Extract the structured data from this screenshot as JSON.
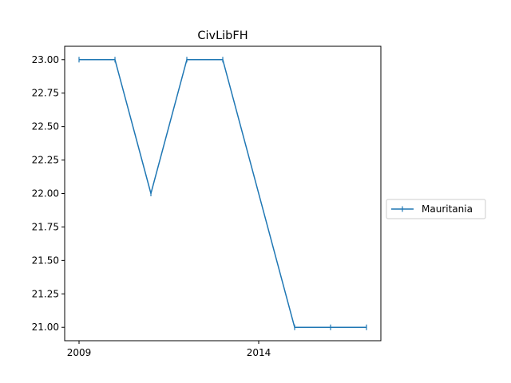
{
  "chart_data": {
    "type": "line",
    "title": "CivLibFH",
    "xlabel": "",
    "ylabel": "",
    "x": [
      2009,
      2010,
      2011,
      2012,
      2013,
      2014,
      2015,
      2016,
      2017
    ],
    "series": [
      {
        "name": "Mauritania",
        "marker": "|",
        "color": "#1f77b4",
        "points": [
          {
            "x": 2009,
            "y": 23
          },
          {
            "x": 2010,
            "y": 23
          },
          {
            "x": 2011,
            "y": 22
          },
          {
            "x": 2012,
            "y": 23
          },
          {
            "x": 2013,
            "y": 23
          },
          {
            "x": 2015,
            "y": 21
          },
          {
            "x": 2016,
            "y": 21
          },
          {
            "x": 2017,
            "y": 21
          }
        ]
      }
    ],
    "xlim": [
      2008.6,
      2017.4
    ],
    "ylim": [
      20.9,
      23.1
    ],
    "x_ticks": [
      2009,
      2014
    ],
    "x_tick_labels": [
      "2009",
      "2014"
    ],
    "y_ticks": [
      21.0,
      21.25,
      21.5,
      21.75,
      22.0,
      22.25,
      22.5,
      22.75,
      23.0
    ],
    "y_tick_labels": [
      "21.00",
      "21.25",
      "21.50",
      "21.75",
      "22.00",
      "22.25",
      "22.50",
      "22.75",
      "23.00"
    ],
    "grid": false,
    "legend_position": "outside-right"
  }
}
